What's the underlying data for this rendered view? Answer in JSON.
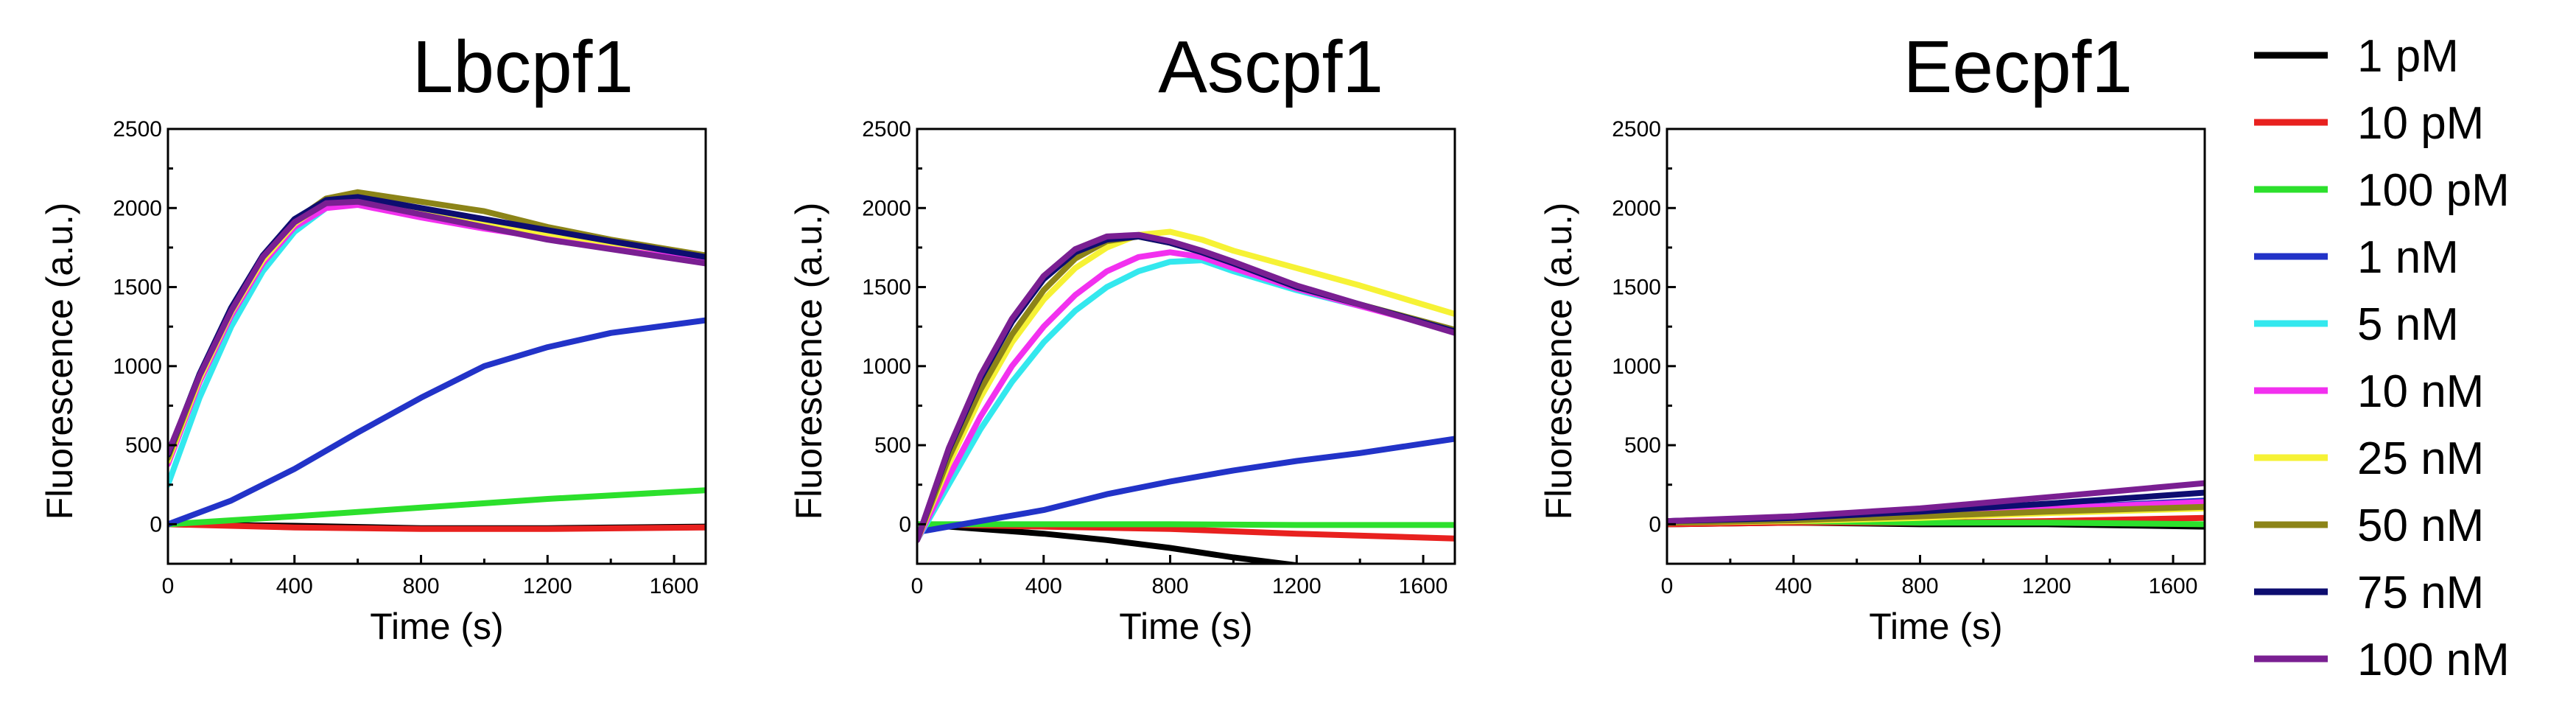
{
  "chart_data": [
    {
      "type": "line",
      "title": "Lbcpf1",
      "xlabel": "Time (s)",
      "ylabel": "Fluorescence (a.u.)",
      "xlim": [
        0,
        1700
      ],
      "ylim": [
        -250,
        2500
      ],
      "xticks": [
        0,
        400,
        800,
        1200,
        1600
      ],
      "yticks": [
        0,
        500,
        1000,
        1500,
        2000,
        2500
      ],
      "series": [
        {
          "name": "1 pM",
          "x": [
            0,
            400,
            800,
            1200,
            1700
          ],
          "y": [
            0,
            -10,
            -25,
            -25,
            -15
          ]
        },
        {
          "name": "10 pM",
          "x": [
            0,
            400,
            800,
            1200,
            1700
          ],
          "y": [
            0,
            -20,
            -30,
            -30,
            -20
          ]
        },
        {
          "name": "100 pM",
          "x": [
            0,
            400,
            800,
            1200,
            1700
          ],
          "y": [
            0,
            50,
            105,
            160,
            215
          ]
        },
        {
          "name": "1 nM",
          "x": [
            0,
            200,
            400,
            600,
            800,
            1000,
            1200,
            1400,
            1700
          ],
          "y": [
            0,
            150,
            350,
            580,
            800,
            1000,
            1120,
            1210,
            1290
          ]
        },
        {
          "name": "5 nM",
          "x": [
            0,
            100,
            200,
            300,
            400,
            500,
            600,
            800,
            1000,
            1200,
            1400,
            1700
          ],
          "y": [
            250,
            800,
            1250,
            1600,
            1850,
            2000,
            2030,
            1950,
            1880,
            1820,
            1760,
            1660
          ]
        },
        {
          "name": "10 nM",
          "x": [
            0,
            100,
            200,
            300,
            400,
            500,
            600,
            800,
            1000,
            1200,
            1400,
            1700
          ],
          "y": [
            380,
            900,
            1320,
            1650,
            1880,
            2000,
            2020,
            1940,
            1870,
            1810,
            1750,
            1660
          ]
        },
        {
          "name": "25 nM",
          "x": [
            0,
            100,
            200,
            300,
            400,
            500,
            600,
            800,
            1000,
            1200,
            1400,
            1700
          ],
          "y": [
            400,
            920,
            1340,
            1670,
            1900,
            2040,
            2060,
            1980,
            1910,
            1840,
            1780,
            1700
          ]
        },
        {
          "name": "50 nM",
          "x": [
            0,
            100,
            200,
            300,
            400,
            500,
            600,
            800,
            1000,
            1200,
            1400,
            1700
          ],
          "y": [
            420,
            940,
            1360,
            1690,
            1920,
            2060,
            2100,
            2040,
            1980,
            1880,
            1800,
            1700
          ]
        },
        {
          "name": "75 nM",
          "x": [
            0,
            100,
            200,
            300,
            400,
            500,
            600,
            800,
            1000,
            1200,
            1400,
            1700
          ],
          "y": [
            440,
            950,
            1370,
            1700,
            1930,
            2050,
            2070,
            2000,
            1930,
            1860,
            1790,
            1690
          ]
        },
        {
          "name": "100 nM",
          "x": [
            0,
            100,
            200,
            300,
            400,
            500,
            600,
            800,
            1000,
            1200,
            1400,
            1700
          ],
          "y": [
            450,
            940,
            1350,
            1690,
            1910,
            2030,
            2040,
            1960,
            1880,
            1800,
            1740,
            1650
          ]
        }
      ]
    },
    {
      "type": "line",
      "title": "Ascpf1",
      "xlabel": "Time (s)",
      "ylabel": "Fluorescence (a.u.)",
      "xlim": [
        0,
        1700
      ],
      "ylim": [
        -250,
        2500
      ],
      "xticks": [
        0,
        400,
        800,
        1200,
        1600
      ],
      "yticks": [
        0,
        500,
        1000,
        1500,
        2000,
        2500
      ],
      "series": [
        {
          "name": "1 pM",
          "x": [
            0,
            200,
            400,
            600,
            800,
            1000,
            1200
          ],
          "y": [
            0,
            -30,
            -60,
            -100,
            -150,
            -210,
            -260
          ]
        },
        {
          "name": "10 pM",
          "x": [
            0,
            400,
            800,
            1200,
            1700
          ],
          "y": [
            0,
            -15,
            -30,
            -60,
            -90
          ]
        },
        {
          "name": "100 pM",
          "x": [
            0,
            400,
            800,
            1200,
            1700
          ],
          "y": [
            0,
            0,
            0,
            -5,
            -5
          ]
        },
        {
          "name": "1 nM",
          "x": [
            0,
            200,
            400,
            600,
            800,
            1000,
            1200,
            1400,
            1700
          ],
          "y": [
            -50,
            20,
            90,
            190,
            270,
            340,
            400,
            450,
            540
          ]
        },
        {
          "name": "5 nM",
          "x": [
            0,
            100,
            200,
            300,
            400,
            500,
            600,
            700,
            800,
            900,
            1000,
            1200,
            1400,
            1700
          ],
          "y": [
            -100,
            250,
            600,
            900,
            1150,
            1350,
            1500,
            1600,
            1660,
            1670,
            1600,
            1480,
            1380,
            1230
          ]
        },
        {
          "name": "10 nM",
          "x": [
            0,
            100,
            200,
            300,
            400,
            500,
            600,
            700,
            800,
            900,
            1000,
            1200,
            1400,
            1700
          ],
          "y": [
            -100,
            300,
            680,
            1000,
            1250,
            1450,
            1600,
            1690,
            1720,
            1690,
            1620,
            1490,
            1380,
            1220
          ]
        },
        {
          "name": "25 nM",
          "x": [
            0,
            100,
            200,
            300,
            400,
            500,
            600,
            700,
            800,
            900,
            1000,
            1200,
            1400,
            1700
          ],
          "y": [
            -100,
            380,
            800,
            1150,
            1420,
            1620,
            1750,
            1830,
            1850,
            1800,
            1730,
            1620,
            1510,
            1330
          ]
        },
        {
          "name": "50 nM",
          "x": [
            0,
            100,
            200,
            300,
            400,
            500,
            600,
            700,
            800,
            900,
            1000,
            1200,
            1400,
            1700
          ],
          "y": [
            -100,
            420,
            850,
            1200,
            1480,
            1680,
            1790,
            1820,
            1780,
            1720,
            1650,
            1500,
            1390,
            1230
          ]
        },
        {
          "name": "75 nM",
          "x": [
            0,
            100,
            200,
            300,
            400,
            500,
            600,
            700,
            800,
            900,
            1000,
            1200,
            1400,
            1700
          ],
          "y": [
            -100,
            470,
            920,
            1280,
            1550,
            1720,
            1800,
            1820,
            1780,
            1720,
            1650,
            1500,
            1390,
            1220
          ]
        },
        {
          "name": "100 nM",
          "x": [
            0,
            100,
            200,
            300,
            400,
            500,
            600,
            700,
            800,
            900,
            1000,
            1200,
            1400,
            1700
          ],
          "y": [
            -100,
            480,
            940,
            1300,
            1570,
            1740,
            1820,
            1830,
            1790,
            1730,
            1660,
            1510,
            1390,
            1210
          ]
        }
      ]
    },
    {
      "type": "line",
      "title": "Eecpf1",
      "xlabel": "Time (s)",
      "ylabel": "Fluorescence (a.u.)",
      "xlim": [
        0,
        1700
      ],
      "ylim": [
        -250,
        2500
      ],
      "xticks": [
        0,
        400,
        800,
        1200,
        1600
      ],
      "yticks": [
        0,
        500,
        1000,
        1500,
        2000,
        2500
      ],
      "series": [
        {
          "name": "1 pM",
          "x": [
            0,
            400,
            800,
            1200,
            1700
          ],
          "y": [
            0,
            10,
            0,
            0,
            -15
          ]
        },
        {
          "name": "10 pM",
          "x": [
            0,
            400,
            800,
            1200,
            1700
          ],
          "y": [
            0,
            10,
            10,
            20,
            40
          ]
        },
        {
          "name": "100 pM",
          "x": [
            0,
            400,
            800,
            1200,
            1700
          ],
          "y": [
            10,
            20,
            10,
            10,
            0
          ]
        },
        {
          "name": "1 nM",
          "x": [
            0,
            400,
            800,
            1200,
            1700
          ],
          "y": [
            20,
            40,
            70,
            100,
            150
          ]
        },
        {
          "name": "5 nM",
          "x": [
            0,
            400,
            800,
            1200,
            1700
          ],
          "y": [
            10,
            30,
            50,
            80,
            120
          ]
        },
        {
          "name": "10 nM",
          "x": [
            0,
            400,
            800,
            1200,
            1700
          ],
          "y": [
            10,
            30,
            60,
            100,
            140
          ]
        },
        {
          "name": "25 nM",
          "x": [
            0,
            400,
            800,
            1200,
            1700
          ],
          "y": [
            10,
            20,
            40,
            70,
            100
          ]
        },
        {
          "name": "50 nM",
          "x": [
            0,
            400,
            800,
            1200,
            1700
          ],
          "y": [
            10,
            25,
            50,
            80,
            110
          ]
        },
        {
          "name": "75 nM",
          "x": [
            0,
            400,
            800,
            1200,
            1700
          ],
          "y": [
            20,
            40,
            80,
            130,
            200
          ]
        },
        {
          "name": "100 nM",
          "x": [
            0,
            400,
            800,
            1200,
            1700
          ],
          "y": [
            20,
            50,
            100,
            170,
            260
          ]
        }
      ]
    }
  ],
  "legend": {
    "items": [
      {
        "label": "1 pM",
        "color": "#000000"
      },
      {
        "label": "10 pM",
        "color": "#e8211f"
      },
      {
        "label": "100 pM",
        "color": "#2ce02c"
      },
      {
        "label": "1 nM",
        "color": "#2233c8"
      },
      {
        "label": "5 nM",
        "color": "#33e8ee"
      },
      {
        "label": "10 nM",
        "color": "#f230ef"
      },
      {
        "label": "25 nM",
        "color": "#f6f235"
      },
      {
        "label": "50 nM",
        "color": "#8c8418"
      },
      {
        "label": "75 nM",
        "color": "#0d0d70"
      },
      {
        "label": "100 nM",
        "color": "#7a1f92"
      }
    ]
  }
}
